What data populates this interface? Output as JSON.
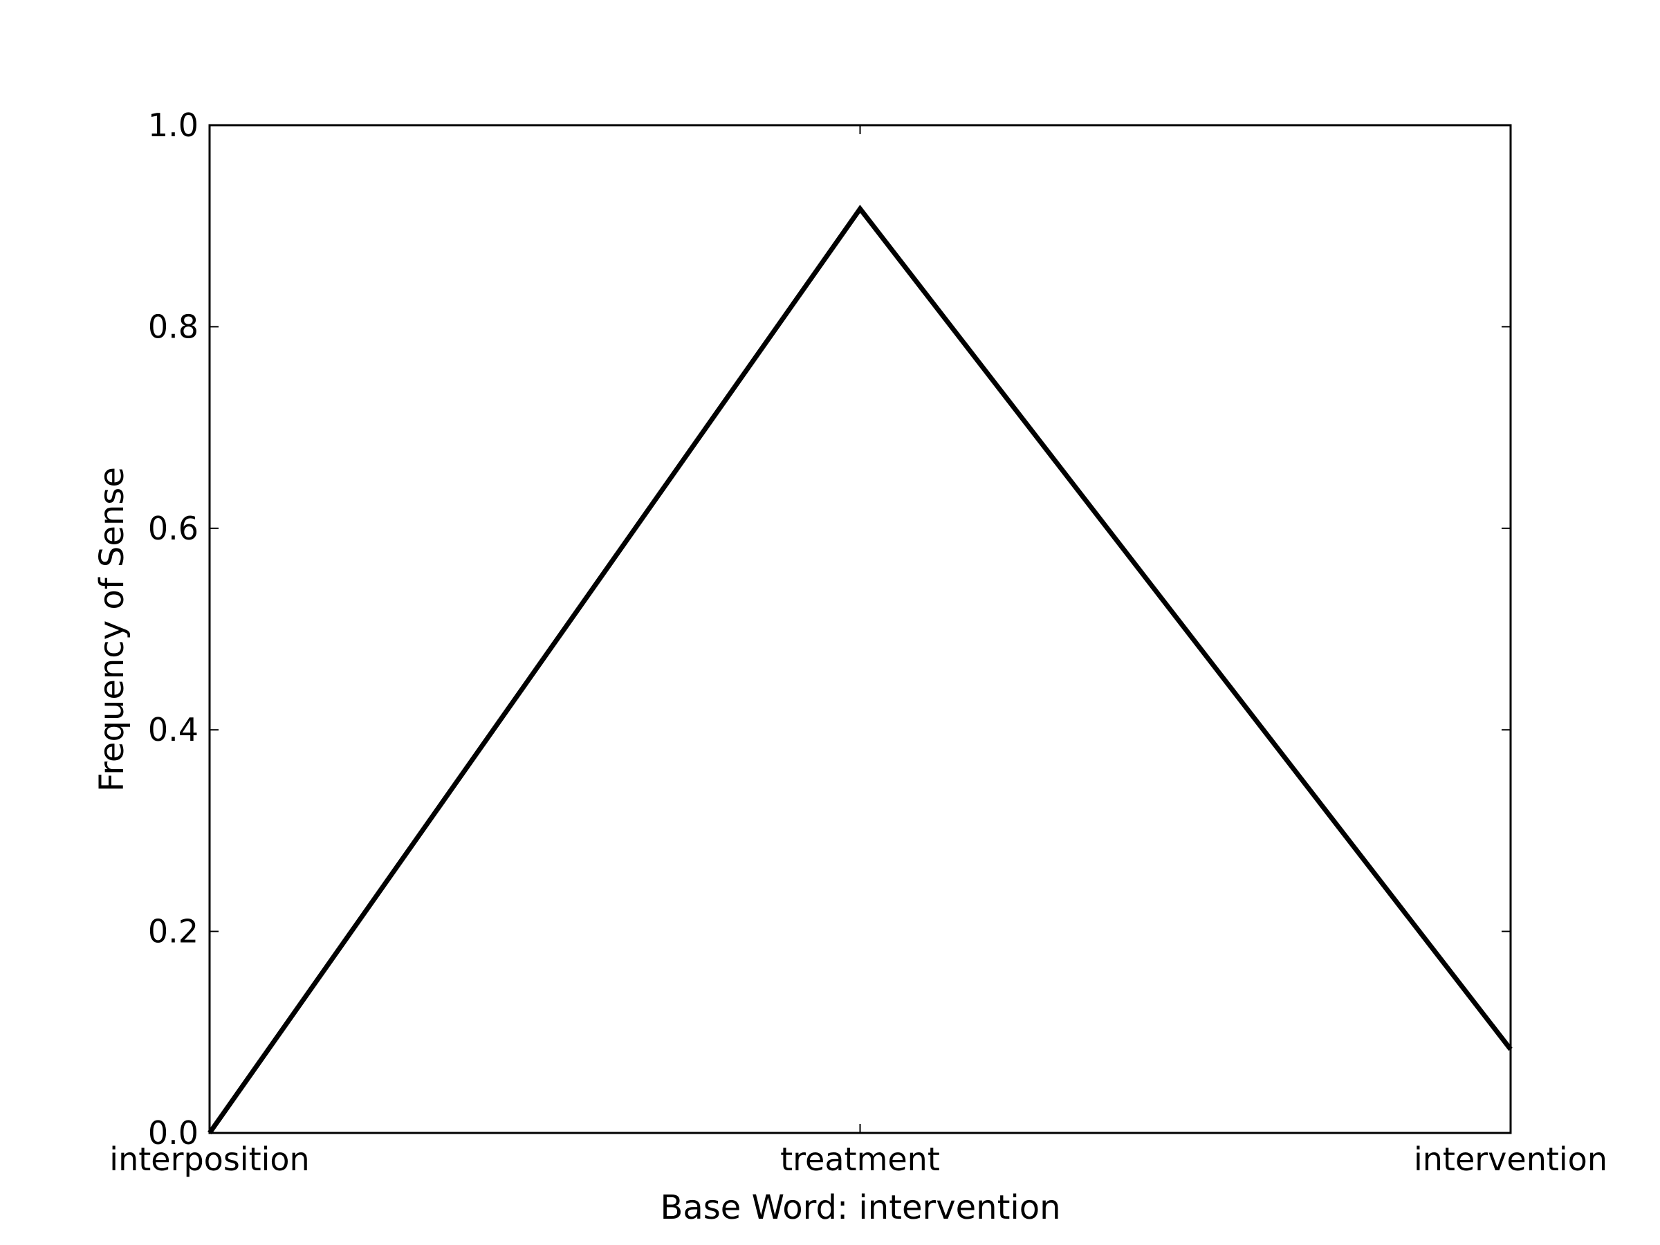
{
  "chart_data": {
    "type": "line",
    "title": "",
    "xlabel": "Base Word: intervention",
    "ylabel": "Frequency of Sense",
    "categories": [
      "interposition",
      "treatment",
      "intervention"
    ],
    "series": [
      {
        "values": [
          0.0,
          0.917,
          0.083
        ]
      }
    ],
    "ylim": [
      0.0,
      1.0
    ],
    "yticks": [
      "0.0",
      "0.2",
      "0.4",
      "0.6",
      "0.8",
      "1.0"
    ],
    "grid": false,
    "legend": "none",
    "line_color": "#000000"
  }
}
